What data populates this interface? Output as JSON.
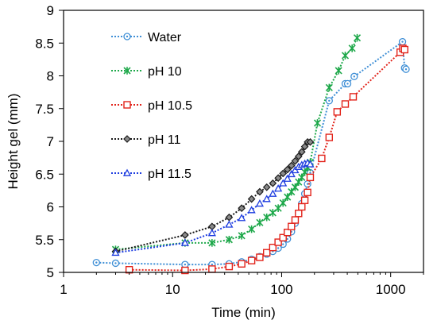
{
  "chart_data": {
    "type": "scatter",
    "title": "",
    "xlabel": "Time (min)",
    "ylabel": "Height gel (mm)",
    "xscale": "log",
    "xlim": [
      1,
      2000
    ],
    "ylim": [
      5,
      9
    ],
    "xticks": [
      1,
      10,
      100,
      1000
    ],
    "xtick_labels": [
      "1",
      "10",
      "100",
      "1000"
    ],
    "yticks": [
      5,
      5.5,
      6,
      6.5,
      7,
      7.5,
      8,
      8.5,
      9
    ],
    "ytick_labels": [
      "5",
      "5.5",
      "6",
      "6.5",
      "7",
      "7.5",
      "8",
      "8.5",
      "9"
    ],
    "legend_position": "top-left",
    "series": [
      {
        "name": "Water",
        "color": "#3f8fd6",
        "marker": "circle",
        "points": [
          [
            2,
            5.15
          ],
          [
            3,
            5.14
          ],
          [
            13,
            5.12
          ],
          [
            23,
            5.12
          ],
          [
            33,
            5.13
          ],
          [
            43,
            5.16
          ],
          [
            53,
            5.2
          ],
          [
            63,
            5.24
          ],
          [
            73,
            5.28
          ],
          [
            83,
            5.32
          ],
          [
            93,
            5.37
          ],
          [
            103,
            5.43
          ],
          [
            113,
            5.51
          ],
          [
            123,
            5.62
          ],
          [
            133,
            5.75
          ],
          [
            143,
            5.9
          ],
          [
            153,
            6.05
          ],
          [
            163,
            6.2
          ],
          [
            173,
            6.35
          ],
          [
            183,
            6.52
          ],
          [
            273,
            7.62
          ],
          [
            383,
            7.88
          ],
          [
            403,
            7.88
          ],
          [
            463,
            7.99
          ],
          [
            1283,
            8.52
          ],
          [
            1343,
            8.12
          ],
          [
            1383,
            8.1
          ]
        ]
      },
      {
        "name": "pH 10",
        "color": "#1ea84a",
        "marker": "asterisk",
        "points": [
          [
            3,
            5.35
          ],
          [
            13,
            5.45
          ],
          [
            23,
            5.45
          ],
          [
            33,
            5.5
          ],
          [
            43,
            5.56
          ],
          [
            53,
            5.66
          ],
          [
            63,
            5.76
          ],
          [
            73,
            5.84
          ],
          [
            83,
            5.91
          ],
          [
            93,
            5.98
          ],
          [
            103,
            6.06
          ],
          [
            113,
            6.15
          ],
          [
            123,
            6.23
          ],
          [
            133,
            6.3
          ],
          [
            143,
            6.38
          ],
          [
            153,
            6.45
          ],
          [
            163,
            6.53
          ],
          [
            173,
            6.6
          ],
          [
            183,
            6.68
          ],
          [
            213,
            7.28
          ],
          [
            273,
            7.82
          ],
          [
            333,
            8.08
          ],
          [
            383,
            8.31
          ],
          [
            443,
            8.42
          ],
          [
            493,
            8.58
          ]
        ]
      },
      {
        "name": "pH 10.5",
        "color": "#e2231a",
        "marker": "square",
        "points": [
          [
            4,
            5.04
          ],
          [
            13,
            5.03
          ],
          [
            23,
            5.05
          ],
          [
            33,
            5.09
          ],
          [
            43,
            5.13
          ],
          [
            53,
            5.18
          ],
          [
            63,
            5.23
          ],
          [
            73,
            5.3
          ],
          [
            83,
            5.38
          ],
          [
            93,
            5.46
          ],
          [
            103,
            5.53
          ],
          [
            113,
            5.61
          ],
          [
            123,
            5.7
          ],
          [
            133,
            5.8
          ],
          [
            143,
            5.9
          ],
          [
            153,
            6
          ],
          [
            163,
            6.1
          ],
          [
            173,
            6.22
          ],
          [
            183,
            6.45
          ],
          [
            233,
            6.74
          ],
          [
            273,
            7.06
          ],
          [
            323,
            7.45
          ],
          [
            383,
            7.57
          ],
          [
            453,
            7.68
          ],
          [
            1223,
            8.36
          ],
          [
            1293,
            8.42
          ],
          [
            1343,
            8.4
          ]
        ]
      },
      {
        "name": "pH 11",
        "color": "#1a1a1a",
        "marker": "diamond",
        "points": [
          [
            3,
            5.32
          ],
          [
            13,
            5.57
          ],
          [
            23,
            5.7
          ],
          [
            33,
            5.84
          ],
          [
            43,
            5.98
          ],
          [
            53,
            6.12
          ],
          [
            63,
            6.23
          ],
          [
            73,
            6.3
          ],
          [
            83,
            6.36
          ],
          [
            93,
            6.44
          ],
          [
            103,
            6.51
          ],
          [
            113,
            6.57
          ],
          [
            123,
            6.63
          ],
          [
            133,
            6.7
          ],
          [
            143,
            6.77
          ],
          [
            153,
            6.84
          ],
          [
            163,
            6.92
          ],
          [
            173,
            6.99
          ],
          [
            183,
            6.99
          ]
        ]
      },
      {
        "name": "pH 11.5",
        "color": "#1f3ee0",
        "marker": "triangle",
        "points": [
          [
            3,
            5.3
          ],
          [
            13,
            5.45
          ],
          [
            23,
            5.6
          ],
          [
            33,
            5.73
          ],
          [
            43,
            5.83
          ],
          [
            53,
            5.95
          ],
          [
            63,
            6.05
          ],
          [
            73,
            6.12
          ],
          [
            83,
            6.2
          ],
          [
            93,
            6.28
          ],
          [
            103,
            6.36
          ],
          [
            113,
            6.43
          ],
          [
            123,
            6.5
          ],
          [
            133,
            6.56
          ],
          [
            143,
            6.61
          ],
          [
            153,
            6.64
          ],
          [
            163,
            6.66
          ],
          [
            173,
            6.67
          ],
          [
            183,
            6.65
          ]
        ]
      }
    ]
  }
}
